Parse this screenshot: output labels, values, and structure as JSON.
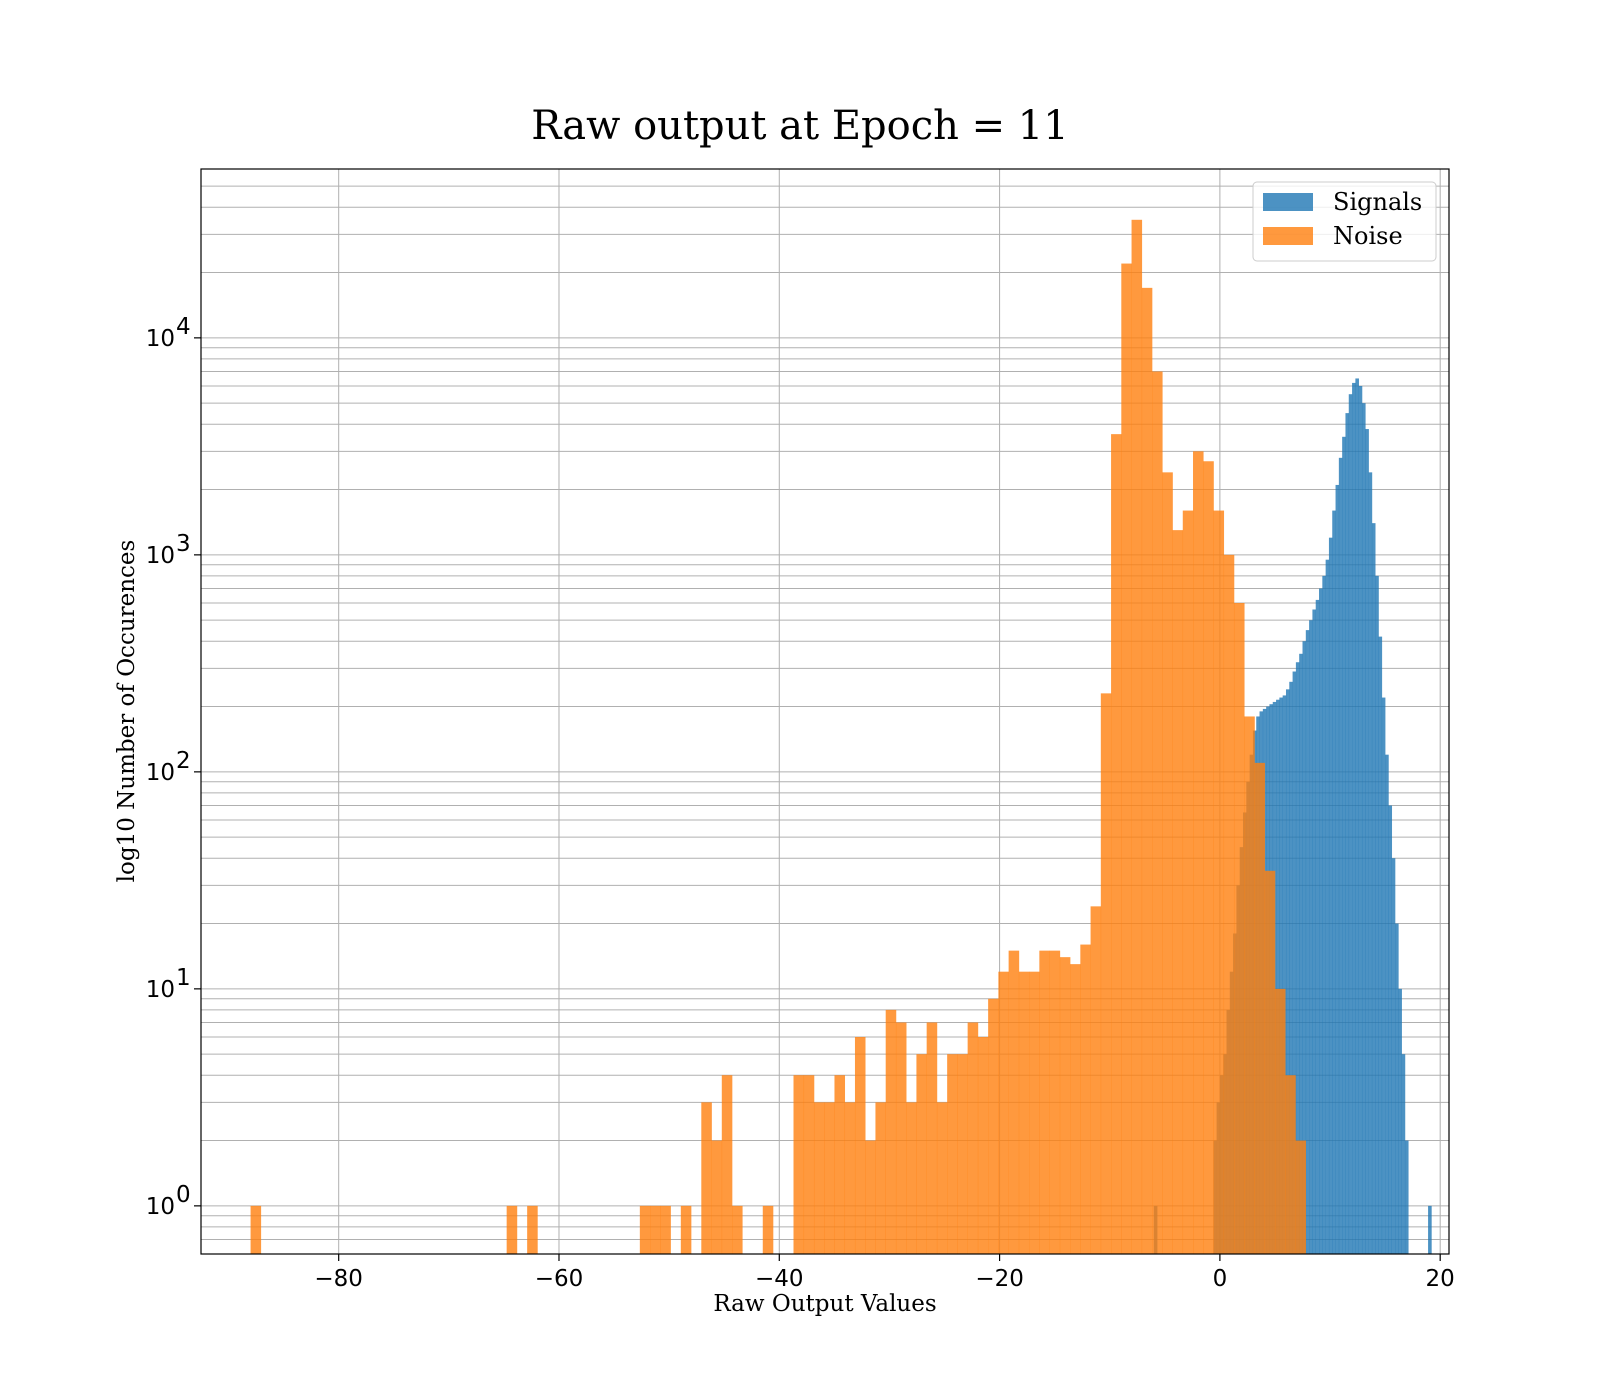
{
  "chart_data": {
    "type": "bar",
    "title": "Raw output at Epoch = 11",
    "xlabel": "Raw Output Values",
    "ylabel": "log10 Number of Occurences",
    "xlim": [
      -92.5,
      20.8
    ],
    "ylim": [
      0.6,
      60000
    ],
    "yscale": "log",
    "grid": true,
    "legend_position": "top-right",
    "xticks": [
      -80,
      -60,
      -40,
      -20,
      0,
      20
    ],
    "xtick_labels": [
      "−80",
      "−60",
      "−40",
      "−20",
      "0",
      "20"
    ],
    "yticks": [
      1,
      10,
      100,
      1000,
      10000
    ],
    "ytick_labels": [
      {
        "base": "10",
        "exp": "0"
      },
      {
        "base": "10",
        "exp": "1"
      },
      {
        "base": "10",
        "exp": "2"
      },
      {
        "base": "10",
        "exp": "3"
      },
      {
        "base": "10",
        "exp": "4"
      }
    ],
    "series": [
      {
        "name": "Signals",
        "color": "#1f77b4",
        "opacity": 0.8,
        "bin_start": -6.0,
        "bin_width": 0.3,
        "counts": [
          1,
          0,
          0,
          0,
          0,
          0,
          0,
          0,
          0,
          0,
          0,
          0,
          0,
          0,
          0,
          0,
          0,
          0,
          2,
          3,
          4,
          5,
          8,
          12,
          18,
          30,
          45,
          65,
          90,
          120,
          155,
          180,
          190,
          195,
          200,
          205,
          210,
          215,
          220,
          225,
          240,
          260,
          290,
          320,
          350,
          400,
          450,
          500,
          560,
          620,
          700,
          800,
          950,
          1200,
          1600,
          2100,
          2800,
          3500,
          4500,
          5500,
          6200,
          6500,
          6000,
          5000,
          3800,
          2400,
          1400,
          800,
          420,
          220,
          120,
          70,
          40,
          20,
          10,
          5,
          2,
          0,
          0,
          0,
          0,
          0,
          0,
          1
        ],
        "note_values": "log-scale histogram counts per bin"
      },
      {
        "name": "Noise",
        "color": "#ff7f0e",
        "opacity": 0.8,
        "bin_start": -88.0,
        "bin_width": 0.93,
        "counts": [
          1,
          0,
          0,
          0,
          0,
          0,
          0,
          0,
          0,
          0,
          0,
          0,
          0,
          0,
          0,
          0,
          0,
          0,
          0,
          0,
          0,
          0,
          0,
          0,
          0,
          1,
          0,
          1,
          0,
          0,
          0,
          0,
          0,
          0,
          0,
          0,
          0,
          0,
          1,
          1,
          1,
          0,
          1,
          0,
          3,
          2,
          4,
          1,
          0,
          0,
          1,
          0,
          0,
          4,
          4,
          3,
          3,
          4,
          3,
          6,
          2,
          3,
          8,
          7,
          3,
          5,
          7,
          3,
          5,
          5,
          7,
          6,
          9,
          12,
          15,
          12,
          12,
          15,
          15,
          14,
          13,
          16,
          24,
          230,
          3600,
          22000,
          35000,
          17000,
          7000,
          2400,
          1300,
          1600,
          3000,
          2700,
          1600,
          1000,
          600,
          180,
          110,
          35,
          10,
          4,
          2
        ]
      }
    ]
  }
}
